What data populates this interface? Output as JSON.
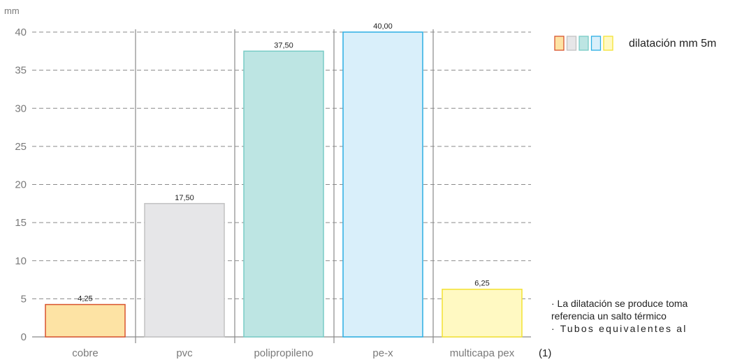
{
  "chart_data": {
    "type": "bar",
    "unit_label": "mm",
    "categories": [
      "cobre",
      "pvc",
      "polipropileno",
      "pe-x",
      "multicapa pex"
    ],
    "values": [
      4.25,
      17.5,
      37.5,
      40.0,
      6.25
    ],
    "value_labels": [
      "4,25",
      "17,50",
      "37,50",
      "40,00",
      "6,25"
    ],
    "ylim": [
      0,
      40
    ],
    "yticks": [
      0,
      5,
      10,
      15,
      20,
      25,
      30,
      35,
      40
    ],
    "grid": true,
    "legend_label": "dilatación mm 5m",
    "footnote_marker": "(1)",
    "notes": [
      "· La dilatación se produce toma",
      "referencia un salto térmico",
      "· Tubos equivalentes al"
    ]
  },
  "colors": {
    "fills": [
      "#fde3a4",
      "#e6e6e8",
      "#bde5e3",
      "#d9effa",
      "#fff9c2"
    ],
    "strokes": [
      "#d8532e",
      "#c2c2c2",
      "#78cbc6",
      "#2aaee3",
      "#f3e233"
    ],
    "grid": "#8a8a8a",
    "axis": "#8a8a8a"
  }
}
